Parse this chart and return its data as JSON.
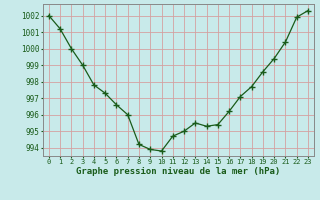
{
  "x": [
    0,
    1,
    2,
    3,
    4,
    5,
    6,
    7,
    8,
    9,
    10,
    11,
    12,
    13,
    14,
    15,
    16,
    17,
    18,
    19,
    20,
    21,
    22,
    23
  ],
  "y": [
    1002,
    1001.2,
    1000,
    999,
    997.8,
    997.3,
    996.6,
    996,
    994.2,
    993.9,
    993.8,
    994.7,
    995.0,
    995.5,
    995.3,
    995.4,
    996.2,
    997.1,
    997.7,
    998.6,
    999.4,
    1000.4,
    1001.9,
    1002.3
  ],
  "ylim": [
    993.5,
    1002.7
  ],
  "yticks": [
    994,
    995,
    996,
    997,
    998,
    999,
    1000,
    1001,
    1002
  ],
  "xticks": [
    0,
    1,
    2,
    3,
    4,
    5,
    6,
    7,
    8,
    9,
    10,
    11,
    12,
    13,
    14,
    15,
    16,
    17,
    18,
    19,
    20,
    21,
    22,
    23
  ],
  "line_color": "#1a5c1a",
  "marker_color": "#1a5c1a",
  "bg_color": "#c8eaea",
  "grid_color": "#d4a0a0",
  "xlabel": "Graphe pression niveau de la mer (hPa)",
  "xlabel_color": "#1a5c1a",
  "tick_label_color": "#1a5c1a",
  "border_color": "#888888",
  "xlim": [
    -0.5,
    23.5
  ]
}
